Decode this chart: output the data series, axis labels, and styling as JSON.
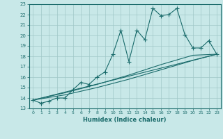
{
  "xlabel": "Humidex (Indice chaleur)",
  "bg_color": "#c8e8e8",
  "grid_color": "#a0c8c8",
  "line_color": "#1a6b6b",
  "xlim": [
    -0.5,
    23.5
  ],
  "ylim": [
    13,
    23
  ],
  "xticks": [
    0,
    1,
    2,
    3,
    4,
    5,
    6,
    7,
    8,
    9,
    10,
    11,
    12,
    13,
    14,
    15,
    16,
    17,
    18,
    19,
    20,
    21,
    22,
    23
  ],
  "yticks": [
    13,
    14,
    15,
    16,
    17,
    18,
    19,
    20,
    21,
    22,
    23
  ],
  "series1": [
    [
      0,
      13.8
    ],
    [
      1,
      13.5
    ],
    [
      2,
      13.7
    ],
    [
      3,
      14.0
    ],
    [
      4,
      14.0
    ],
    [
      5,
      14.8
    ],
    [
      6,
      15.5
    ],
    [
      7,
      15.3
    ],
    [
      8,
      16.0
    ],
    [
      9,
      16.5
    ],
    [
      10,
      18.2
    ],
    [
      11,
      20.5
    ],
    [
      12,
      17.5
    ],
    [
      13,
      20.5
    ],
    [
      14,
      19.6
    ],
    [
      15,
      22.6
    ],
    [
      16,
      21.9
    ],
    [
      17,
      22.0
    ],
    [
      18,
      22.6
    ],
    [
      19,
      20.1
    ],
    [
      20,
      18.8
    ],
    [
      21,
      18.8
    ],
    [
      22,
      19.5
    ],
    [
      23,
      18.2
    ]
  ],
  "series2": [
    [
      0,
      13.8
    ],
    [
      23,
      18.2
    ]
  ],
  "series3": [
    [
      0,
      13.8
    ],
    [
      4,
      14.5
    ],
    [
      8,
      15.3
    ],
    [
      12,
      16.2
    ],
    [
      16,
      17.2
    ],
    [
      20,
      18.1
    ],
    [
      23,
      18.2
    ]
  ],
  "series4": [
    [
      0,
      13.8
    ],
    [
      4,
      14.3
    ],
    [
      8,
      15.0
    ],
    [
      12,
      15.8
    ],
    [
      16,
      16.7
    ],
    [
      20,
      17.6
    ],
    [
      23,
      18.2
    ]
  ]
}
